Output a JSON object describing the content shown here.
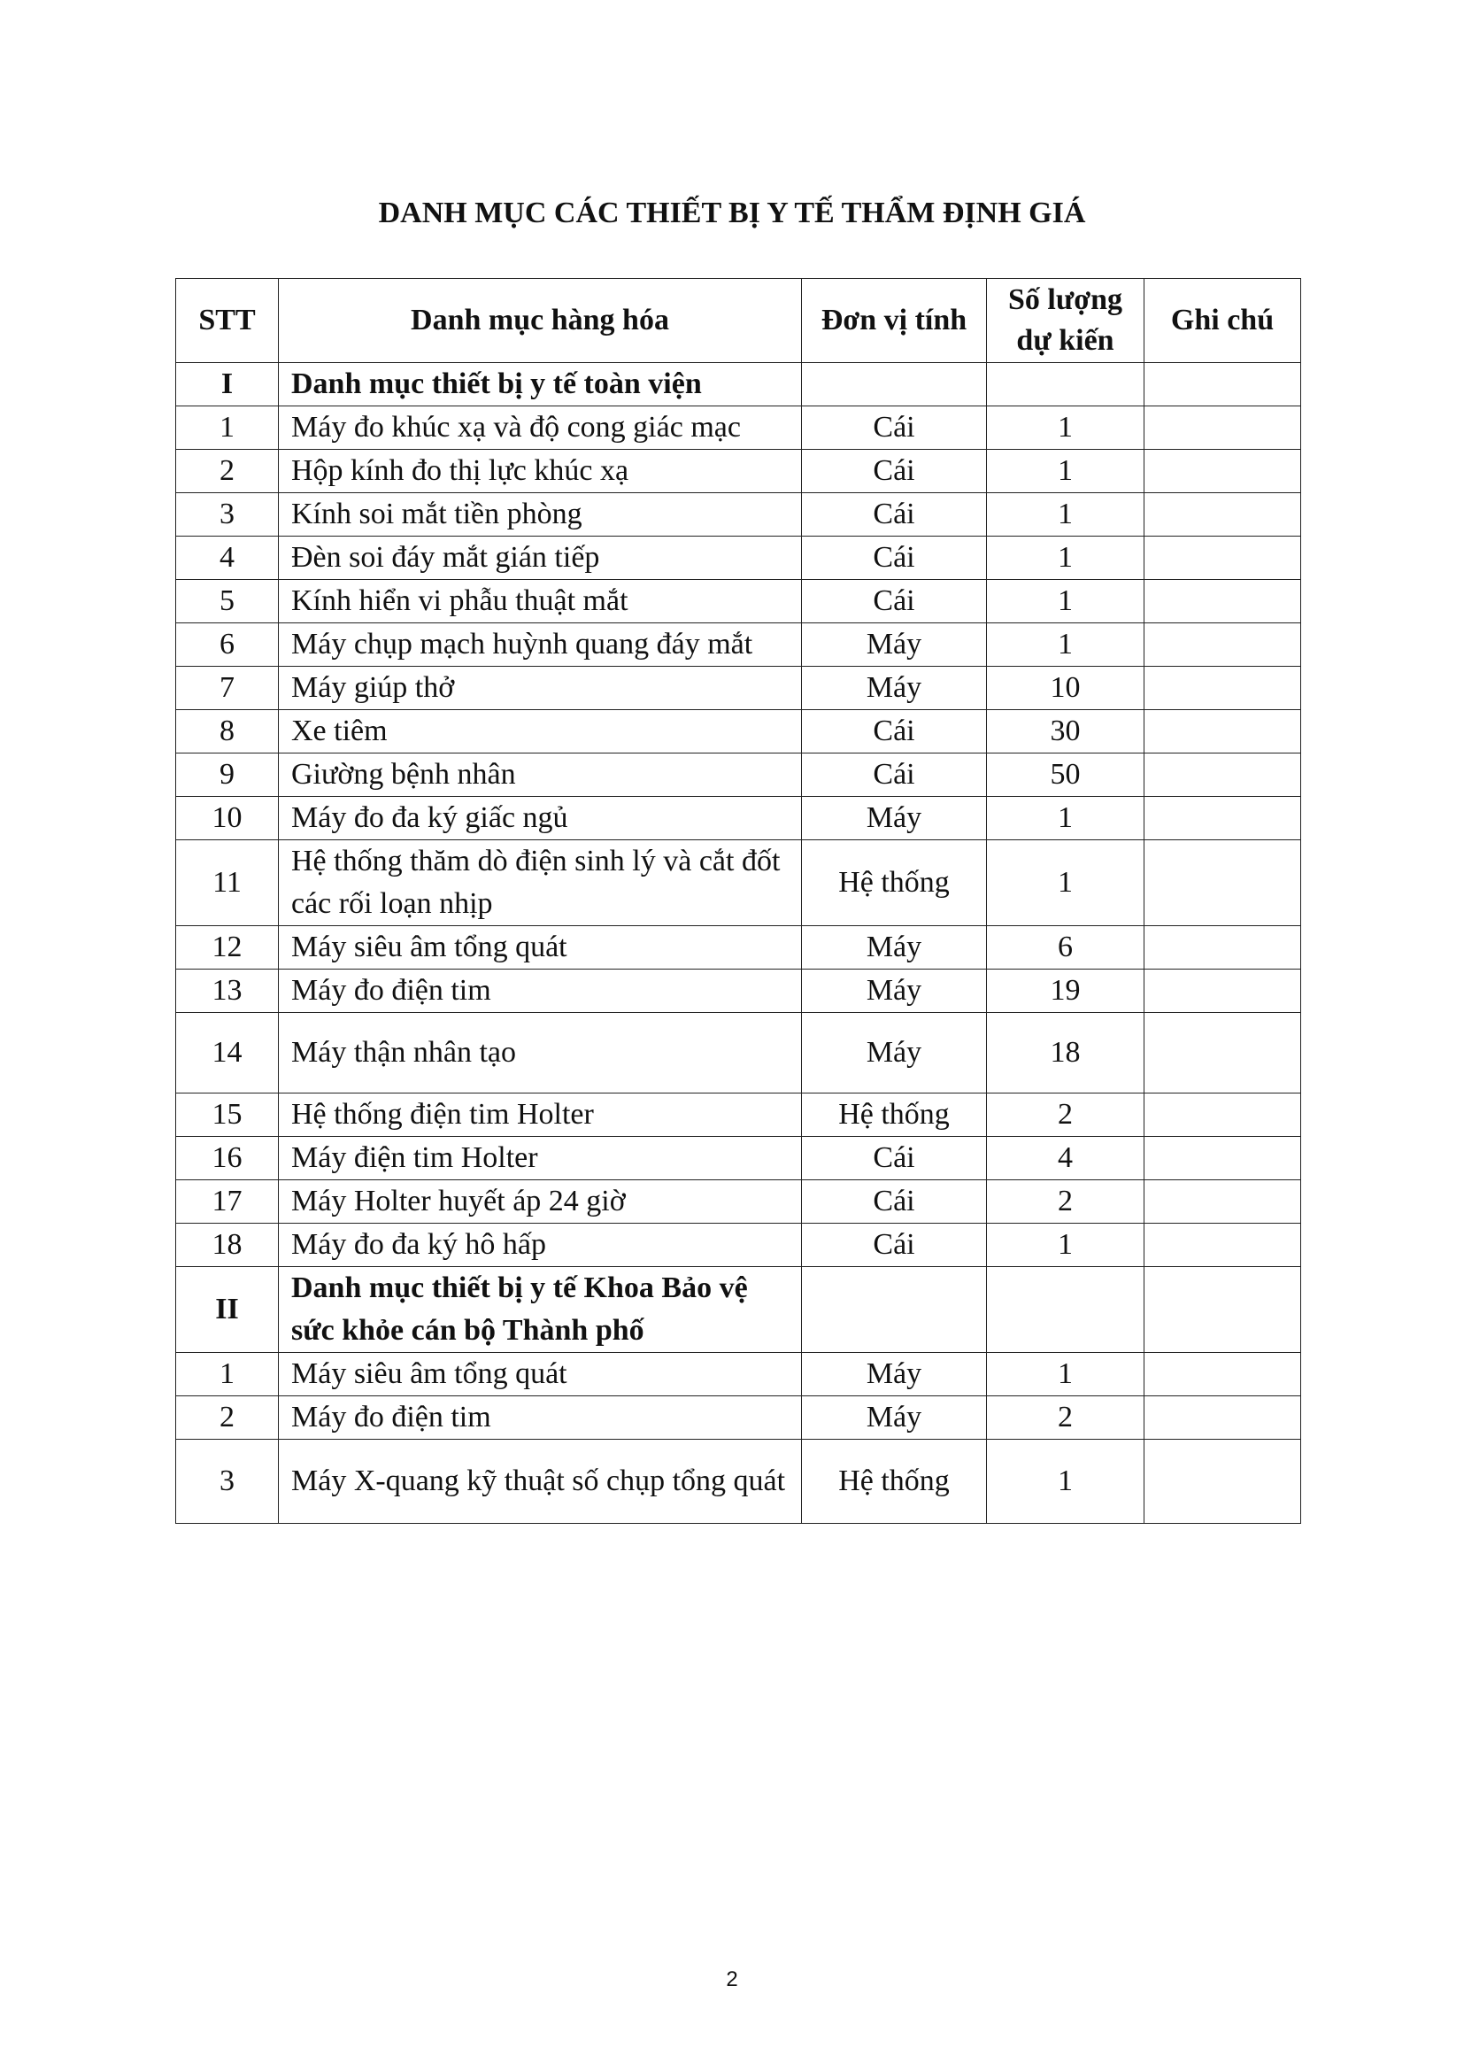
{
  "title": "DANH MỤC CÁC THIẾT BỊ Y TẾ THẨM ĐỊNH GIÁ",
  "table": {
    "headers": [
      "STT",
      "Danh mục hàng hóa",
      "Đơn vị tính",
      "Số lượng dự kiến",
      "Ghi chú"
    ],
    "rows": [
      {
        "stt": "I",
        "name": "Danh mục thiết bị y tế toàn viện",
        "unit": "",
        "qty": "",
        "note": "",
        "section": true
      },
      {
        "stt": "1",
        "name": "Máy đo khúc xạ và độ cong giác mạc",
        "unit": "Cái",
        "qty": "1",
        "note": ""
      },
      {
        "stt": "2",
        "name": "Hộp kính đo thị lực khúc xạ",
        "unit": "Cái",
        "qty": "1",
        "note": ""
      },
      {
        "stt": "3",
        "name": "Kính soi mắt tiền phòng",
        "unit": "Cái",
        "qty": "1",
        "note": ""
      },
      {
        "stt": "4",
        "name": "Đèn soi đáy mắt gián tiếp",
        "unit": "Cái",
        "qty": "1",
        "note": ""
      },
      {
        "stt": "5",
        "name": "Kính hiển vi phẫu thuật mắt",
        "unit": "Cái",
        "qty": "1",
        "note": ""
      },
      {
        "stt": "6",
        "name": "Máy chụp mạch huỳnh quang đáy mắt",
        "unit": "Máy",
        "qty": "1",
        "note": ""
      },
      {
        "stt": "7",
        "name": "Máy giúp thở",
        "unit": "Máy",
        "qty": "10",
        "note": ""
      },
      {
        "stt": "8",
        "name": "Xe tiêm",
        "unit": "Cái",
        "qty": "30",
        "note": ""
      },
      {
        "stt": "9",
        "name": "Giường bệnh nhân",
        "unit": "Cái",
        "qty": "50",
        "note": ""
      },
      {
        "stt": "10",
        "name": "Máy đo đa ký giấc ngủ",
        "unit": "Máy",
        "qty": "1",
        "note": ""
      },
      {
        "stt": "11",
        "name": "Hệ thống thăm dò điện sinh lý và cắt đốt các rối loạn nhịp",
        "unit": "Hệ thống",
        "qty": "1",
        "note": ""
      },
      {
        "stt": "12",
        "name": "Máy siêu âm tổng quát",
        "unit": "Máy",
        "qty": "6",
        "note": ""
      },
      {
        "stt": "13",
        "name": "Máy đo điện tim",
        "unit": "Máy",
        "qty": "19",
        "note": ""
      },
      {
        "stt": "14",
        "name": "Máy thận nhân tạo",
        "unit": "Máy",
        "qty": "18",
        "note": ""
      },
      {
        "stt": "15",
        "name": "Hệ thống điện tim Holter",
        "unit": "Hệ thống",
        "qty": "2",
        "note": ""
      },
      {
        "stt": "16",
        "name": "Máy điện tim Holter",
        "unit": "Cái",
        "qty": "4",
        "note": ""
      },
      {
        "stt": "17",
        "name": "Máy Holter huyết áp 24 giờ",
        "unit": "Cái",
        "qty": "2",
        "note": ""
      },
      {
        "stt": "18",
        "name": "Máy đo đa ký hô hấp",
        "unit": "Cái",
        "qty": "1",
        "note": ""
      },
      {
        "stt": "II",
        "name": "Danh mục thiết bị y tế Khoa Bảo vệ sức khỏe cán bộ Thành phố",
        "unit": "",
        "qty": "",
        "note": "",
        "section": true
      },
      {
        "stt": "1",
        "name": "Máy siêu âm tổng quát",
        "unit": "Máy",
        "qty": "1",
        "note": ""
      },
      {
        "stt": "2",
        "name": "Máy đo điện tim",
        "unit": "Máy",
        "qty": "2",
        "note": ""
      },
      {
        "stt": "3",
        "name": "Máy X-quang kỹ thuật số chụp tổng quát",
        "unit": "Hệ thống",
        "qty": "1",
        "note": ""
      }
    ]
  },
  "page_number": "2"
}
